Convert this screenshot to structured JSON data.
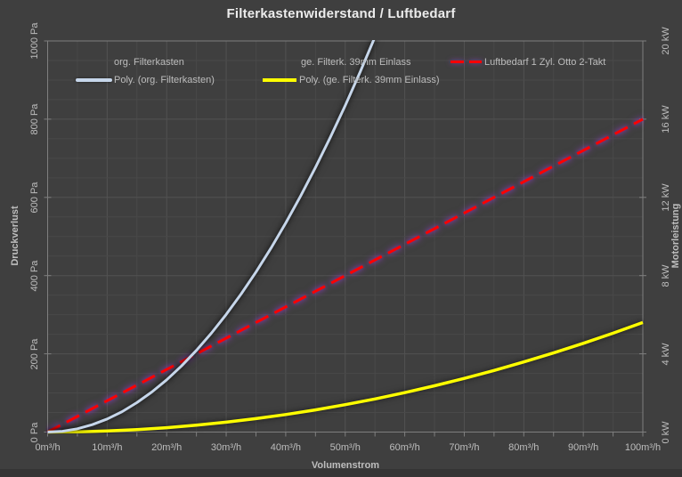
{
  "chart": {
    "title": "Filterkastenwiderstand / Luftbedarf",
    "legend": {
      "items": [
        {
          "label": "org. Filterkasten",
          "marker": "none"
        },
        {
          "label": "Poly. (org. Filterkasten)",
          "marker": "blue-solid-line"
        },
        {
          "label": "ge. Filterk. 39mm Einlass",
          "marker": "none"
        },
        {
          "label": "Poly. (ge. Filterk. 39mm Einlass)",
          "marker": "yellow-solid-line"
        },
        {
          "label": "Luftbedarf 1 Zyl. Otto 2-Takt",
          "marker": "red-dashed-line"
        }
      ]
    },
    "colors": {
      "background": "#3f3f3f",
      "grid_minor": "#494949",
      "grid_major": "#525252",
      "axis": "#7f7f7f",
      "text": "#bdbdbd",
      "title_text": "#ececec",
      "series_poly_org": "#c6d6ea",
      "series_poly_ge": "#ffff00",
      "series_luftbedarf": "#ff0000",
      "luftbedarf_glow": "rgba(150,60,200,0.6)"
    }
  },
  "chart_data": {
    "type": "line",
    "title": "Filterkastenwiderstand / Luftbedarf",
    "grid": "minor and major gridlines on",
    "legend_position": "inside top, two rows",
    "x_axis": {
      "label": "Volumenstrom",
      "range": [
        0,
        100
      ],
      "tick_step": 10,
      "minor_grid_step": 5,
      "ticks": [
        "0m³/h",
        "10m³/h",
        "20m³/h",
        "30m³/h",
        "40m³/h",
        "50m³/h",
        "60m³/h",
        "70m³/h",
        "80m³/h",
        "90m³/h",
        "100m³/h"
      ]
    },
    "y_left": {
      "label": "Druckverlust",
      "range": [
        0,
        1000
      ],
      "tick_step": 200,
      "minor_grid_step": 50,
      "ticks": [
        "0 Pa",
        "200 Pa",
        "400 Pa",
        "600 Pa",
        "800 Pa",
        "1000 Pa"
      ]
    },
    "y_right": {
      "label": "Motorleistung",
      "range": [
        0,
        20
      ],
      "tick_step": 4,
      "ticks": [
        "0 kW",
        "4 kW",
        "8 kW",
        "12 kW",
        "16 kW",
        "20 kW"
      ]
    },
    "series": [
      {
        "name": "org. Filterkasten",
        "axis": "left",
        "style": "hidden",
        "note": "legend entry only, no visible markers in plot",
        "points": []
      },
      {
        "name": "Poly. (org. Filterkasten)",
        "axis": "left",
        "style": "solid",
        "color": "#c6d6ea",
        "width": 3,
        "glow": "rgba(0,0,0,0.5)",
        "fit": "y ≈ 0.334·x² Pa",
        "points": [
          [
            0,
            0
          ],
          [
            2.5,
            2.1
          ],
          [
            5,
            8.4
          ],
          [
            7.5,
            18.8
          ],
          [
            10,
            33.4
          ],
          [
            12.5,
            52.2
          ],
          [
            15,
            75.2
          ],
          [
            17.5,
            102.3
          ],
          [
            20,
            133.6
          ],
          [
            22.5,
            169.1
          ],
          [
            25,
            208.8
          ],
          [
            27.5,
            252.6
          ],
          [
            30,
            300.6
          ],
          [
            32.5,
            352.8
          ],
          [
            35,
            409.2
          ],
          [
            37.5,
            469.7
          ],
          [
            40,
            534.4
          ],
          [
            42.5,
            603.3
          ],
          [
            45,
            676.4
          ],
          [
            47.5,
            753.6
          ],
          [
            50,
            835.0
          ],
          [
            52.5,
            920.6
          ],
          [
            55,
            1010.4
          ]
        ]
      },
      {
        "name": "ge. Filterk. 39mm Einlass",
        "axis": "left",
        "style": "hidden",
        "note": "legend entry only, no visible markers in plot",
        "points": []
      },
      {
        "name": "Poly. (ge. Filterk. 39mm Einlass)",
        "axis": "left",
        "style": "solid",
        "color": "#ffff00",
        "width": 3.5,
        "glow": "rgba(0,0,0,0.35)",
        "fit": "y ≈ 0.028·x² Pa",
        "points": [
          [
            0,
            0
          ],
          [
            5,
            0.7
          ],
          [
            10,
            2.8
          ],
          [
            15,
            6.3
          ],
          [
            20,
            11.2
          ],
          [
            25,
            17.5
          ],
          [
            30,
            25.2
          ],
          [
            35,
            34.3
          ],
          [
            40,
            44.8
          ],
          [
            45,
            56.7
          ],
          [
            50,
            70.0
          ],
          [
            55,
            84.7
          ],
          [
            60,
            100.8
          ],
          [
            65,
            118.3
          ],
          [
            70,
            137.2
          ],
          [
            75,
            157.5
          ],
          [
            80,
            179.2
          ],
          [
            85,
            202.3
          ],
          [
            90,
            226.8
          ],
          [
            95,
            252.7
          ],
          [
            100,
            280.0
          ]
        ]
      },
      {
        "name": "Luftbedarf 1 Zyl. Otto 2-Takt",
        "axis": "right",
        "style": "dashed",
        "color": "#ff0000",
        "width": 3,
        "glow": "rgba(150,60,200,0.6)",
        "fit": "y ≈ 0.16·x kW (linear)",
        "points": [
          [
            0,
            0
          ],
          [
            100,
            16
          ]
        ]
      }
    ]
  }
}
